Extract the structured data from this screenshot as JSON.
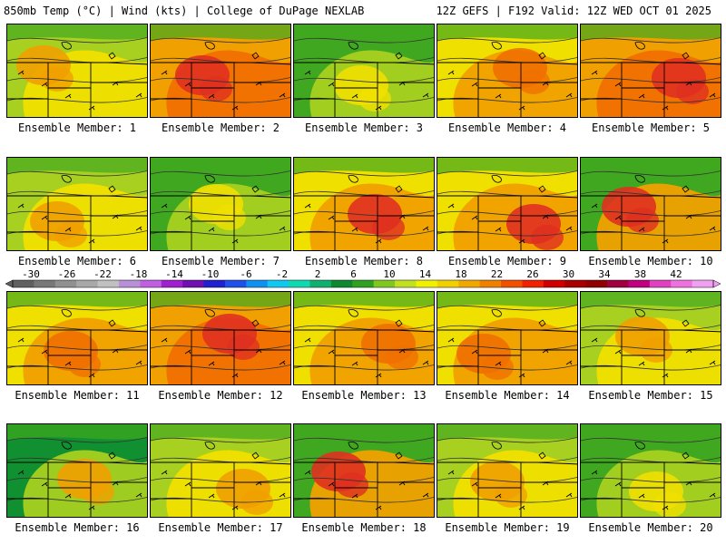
{
  "header": {
    "left": "850mb Temp (°C) | Wind (kts) | College of DuPage NEXLAB",
    "right": "12Z GEFS | F192 Valid: 12Z WED OCT 01 2025"
  },
  "members": [
    {
      "label": "Ensemble Member: 1"
    },
    {
      "label": "Ensemble Member: 2"
    },
    {
      "label": "Ensemble Member: 3"
    },
    {
      "label": "Ensemble Member: 4"
    },
    {
      "label": "Ensemble Member: 5"
    },
    {
      "label": "Ensemble Member: 6"
    },
    {
      "label": "Ensemble Member: 7"
    },
    {
      "label": "Ensemble Member: 8"
    },
    {
      "label": "Ensemble Member: 9"
    },
    {
      "label": "Ensemble Member: 10"
    },
    {
      "label": "Ensemble Member: 11"
    },
    {
      "label": "Ensemble Member: 12"
    },
    {
      "label": "Ensemble Member: 13"
    },
    {
      "label": "Ensemble Member: 14"
    },
    {
      "label": "Ensemble Member: 15"
    },
    {
      "label": "Ensemble Member: 16"
    },
    {
      "label": "Ensemble Member: 17"
    },
    {
      "label": "Ensemble Member: 18"
    },
    {
      "label": "Ensemble Member: 19"
    },
    {
      "label": "Ensemble Member: 20"
    }
  ],
  "colorbar": {
    "ticks": [
      "-30",
      "-26",
      "-22",
      "-18",
      "-14",
      "-10",
      "-6",
      "-2",
      "2",
      "6",
      "10",
      "14",
      "18",
      "22",
      "26",
      "30",
      "34",
      "38",
      "42"
    ],
    "colors": [
      "#606060",
      "#787878",
      "#909090",
      "#a8a8a8",
      "#c0c0c0",
      "#b890d8",
      "#c060e0",
      "#a020d0",
      "#7010b0",
      "#2020d0",
      "#2050e8",
      "#1090f0",
      "#10c8f0",
      "#10d8b0",
      "#10b070",
      "#108830",
      "#30a020",
      "#80c820",
      "#c0e020",
      "#f0f000",
      "#f0d000",
      "#f0a800",
      "#f08000",
      "#f05000",
      "#f02000",
      "#d00000",
      "#a80000",
      "#900000",
      "#a00040",
      "#c00080",
      "#e040c0",
      "#f070e0",
      "#f0a0f0"
    ]
  },
  "fill_colors": {
    "cold": "#109030",
    "cool": "#40a820",
    "mild": "#a8d020",
    "warm": "#f0e000",
    "hot": "#f0a000",
    "hotter": "#f07000",
    "hottest": "#e03020"
  }
}
